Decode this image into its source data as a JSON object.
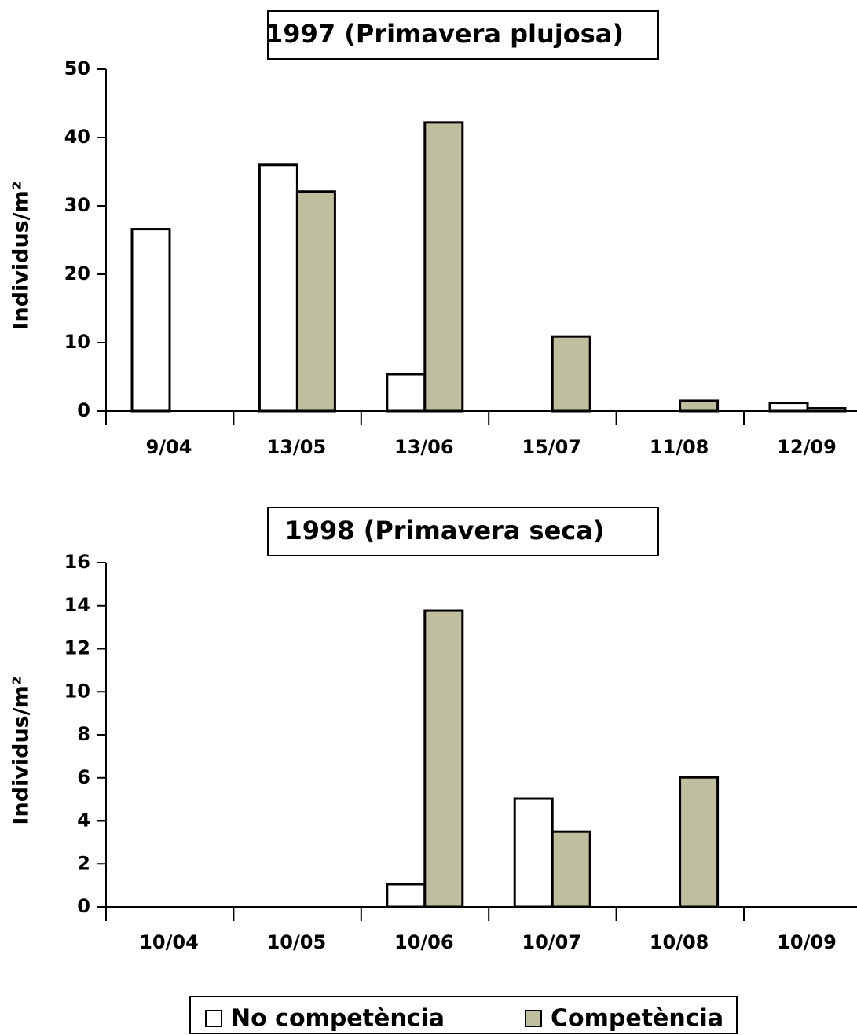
{
  "chart_data": [
    {
      "type": "bar",
      "title": "1997 (Primavera plujosa)",
      "y_label": "Individus/m²",
      "categories": [
        "9/04",
        "13/05",
        "13/06",
        "15/07",
        "11/08",
        "12/09"
      ],
      "series": [
        {
          "name": "No competència",
          "color": "#ffffff",
          "values": [
            26.6,
            36,
            5.4,
            0,
            0,
            1.2
          ]
        },
        {
          "name": "Competència",
          "color": "#bfbfa0",
          "values": [
            0,
            32.1,
            42.2,
            10.9,
            1.5,
            0.4
          ]
        }
      ],
      "ylim": [
        0,
        50
      ],
      "yticks": [
        0,
        10,
        20,
        30,
        40,
        50
      ]
    },
    {
      "type": "bar",
      "title": "1998 (Primavera seca)",
      "y_label": "Individus/m²",
      "categories": [
        "10/04",
        "10/05",
        "10/06",
        "10/07",
        "10/08",
        "10/09"
      ],
      "series": [
        {
          "color": "#ffffff",
          "values": [
            0,
            0,
            1.06,
            5.04,
            0,
            0
          ]
        },
        {
          "color": "#bfbfa0",
          "values": [
            0,
            0,
            13.77,
            3.5,
            6.02,
            0
          ]
        }
      ],
      "ylim": [
        0,
        16
      ],
      "yticks": [
        0,
        2,
        4,
        6,
        8,
        10,
        12,
        14,
        16
      ]
    }
  ]
}
